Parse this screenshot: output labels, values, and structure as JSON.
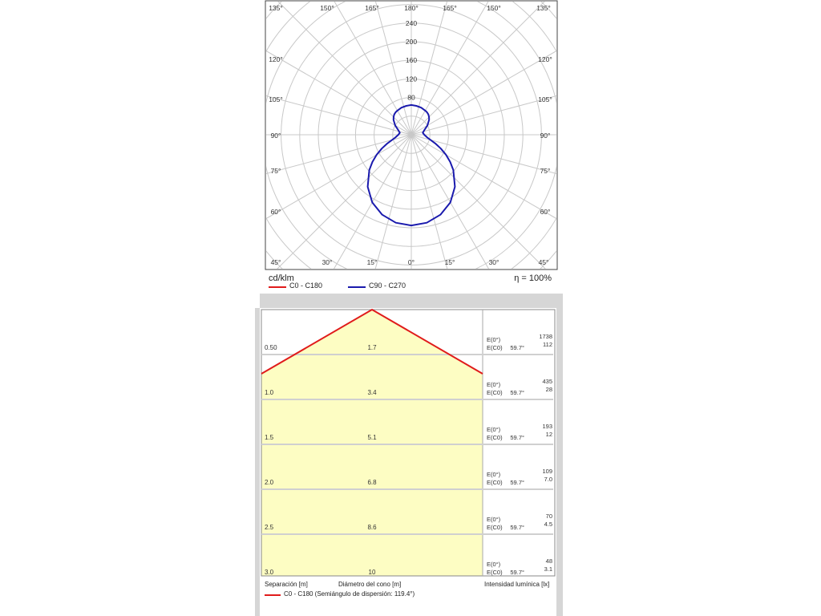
{
  "polar": {
    "unit_label": "cd/klm",
    "efficiency_label": "η = 100%",
    "top_angle_labels": [
      "135°",
      "150°",
      "165°",
      "180°",
      "165°",
      "150°",
      "135°"
    ],
    "side_angle_labels": [
      "120°",
      "105°",
      "90°",
      "75°",
      "60°"
    ],
    "bottom_angle_labels": [
      "45°",
      "30°",
      "15°",
      "0°",
      "15°",
      "30°",
      "45°"
    ],
    "radial_tick_labels": [
      "240",
      "200",
      "160",
      "120",
      "80"
    ],
    "legend": [
      {
        "label": "C0 - C180",
        "color": "#e01b1b"
      },
      {
        "label": "C90 - C270",
        "color": "#1a1aad"
      }
    ]
  },
  "chart_data": [
    {
      "type": "line",
      "title": "",
      "projection": "polar",
      "unit": "cd/klm",
      "r_max": 240,
      "r_ticks": [
        40,
        80,
        120,
        160,
        200,
        240
      ],
      "angle_step_deg": 15,
      "series": [
        {
          "name": "C90 - C270",
          "color": "#1a1aad",
          "gamma_deg": [
            0,
            10,
            20,
            30,
            40,
            50,
            55,
            60,
            65,
            70,
            80,
            90,
            100,
            110,
            120,
            130,
            135,
            140,
            145,
            150,
            160,
            170,
            180
          ],
          "intensity_cdklm": [
            195,
            192,
            183,
            168,
            146,
            118,
            102,
            86,
            70,
            55,
            35,
            28,
            25,
            30,
            40,
            50,
            54,
            57,
            59,
            60,
            62,
            63,
            64
          ]
        }
      ]
    },
    {
      "type": "table",
      "title": "",
      "xlabel": "Separación [m]",
      "ylabel": "Diámetro del cono [m]",
      "value_label": "Intensidad lumínica [lx]",
      "legend": "C0 - C180 (Semiángulo de dispersión: 119.4°)",
      "half_angle_deg": 119.4,
      "columns": [
        "separation_m",
        "cone_diameter_m",
        "E0_lx",
        "EC0_lx",
        "angle"
      ],
      "rows": [
        {
          "separation": "0.50",
          "diameter": "1.7",
          "e0": "1738",
          "ec0": "112",
          "angle": "59.7°"
        },
        {
          "separation": "1.0",
          "diameter": "3.4",
          "e0": "435",
          "ec0": "28",
          "angle": "59.7°"
        },
        {
          "separation": "1.5",
          "diameter": "5.1",
          "e0": "193",
          "ec0": "12",
          "angle": "59.7°"
        },
        {
          "separation": "2.0",
          "diameter": "6.8",
          "e0": "109",
          "ec0": "7.0",
          "angle": "59.7°"
        },
        {
          "separation": "2.5",
          "diameter": "8.6",
          "e0": "70",
          "ec0": "4.5",
          "angle": "59.7°"
        },
        {
          "separation": "3.0",
          "diameter": "10",
          "e0": "48",
          "ec0": "3.1",
          "angle": "59.7°"
        }
      ]
    }
  ],
  "cone": {
    "e0_label": "E(0°)",
    "ec0_label": "E(C0)",
    "separation_label": "Separación [m]",
    "diameter_label": "Diámetro del cono [m]",
    "intensity_label": "Intensidad lumínica [lx]",
    "legend_label": "C0 - C180 (Semiángulo de dispersión: 119.4°)",
    "legend_color": "#e01b1b",
    "fill_color": "#fdfdc3"
  }
}
